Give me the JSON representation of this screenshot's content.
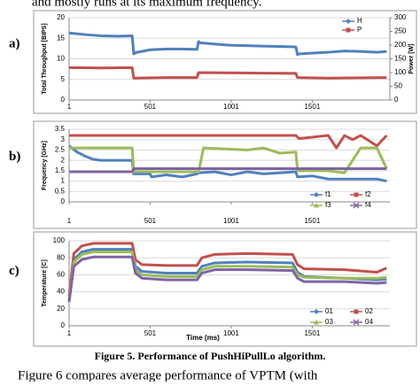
{
  "text_top": "and mostly runs at its maximum frequency.",
  "caption": "Figure 5. Performance of PushHiPullLo algorithm.",
  "text_bottom": "Figure 6 compares average performance of VPTM (with",
  "chart_data": [
    {
      "type": "line",
      "panel": "a)",
      "ylabel": "Total Throughput [BIPS]",
      "y2label": "Power [W]",
      "legend": "top-right",
      "xlim": [
        1,
        1980
      ],
      "xticks": [
        1,
        501,
        1001,
        1501
      ],
      "ylim": [
        0,
        20
      ],
      "yticks": [
        0,
        5,
        10,
        15,
        20
      ],
      "y2lim": [
        0,
        300
      ],
      "y2ticks": [
        0,
        50,
        100,
        150,
        200,
        250,
        300
      ],
      "series": [
        {
          "name": "H",
          "color": "#4f81bd",
          "marker": "diamond",
          "x": [
            1,
            100,
            200,
            300,
            390,
            400,
            410,
            500,
            600,
            700,
            790,
            800,
            810,
            900,
            1000,
            1100,
            1200,
            1300,
            1400,
            1410,
            1420,
            1500,
            1600,
            1700,
            1800,
            1900,
            1960
          ],
          "values": [
            16.3,
            15.9,
            15.6,
            15.5,
            15.6,
            11.2,
            11.5,
            12.2,
            12.4,
            12.4,
            12.3,
            14.2,
            13.9,
            13.6,
            13.3,
            13.2,
            13.1,
            13.0,
            12.9,
            11,
            11.2,
            11.4,
            11.6,
            11.9,
            11.8,
            11.6,
            11.8
          ]
        },
        {
          "name": "P",
          "color": "#c0504d",
          "marker": "square",
          "axis": "y2",
          "x": [
            1,
            200,
            390,
            400,
            600,
            790,
            800,
            1000,
            1200,
            1400,
            1410,
            1600,
            1800,
            1960
          ],
          "values": [
            118,
            117,
            118,
            80,
            82,
            82,
            100,
            99,
            98,
            97,
            82,
            80,
            81,
            82
          ]
        }
      ]
    },
    {
      "type": "line",
      "panel": "b)",
      "ylabel": "Frequency [GHz]",
      "legend": "bottom-right",
      "xlim": [
        1,
        1980
      ],
      "xticks": [
        1,
        501,
        1001,
        1501
      ],
      "ylim": [
        0,
        3.5
      ],
      "yticks": [
        0,
        0.5,
        1,
        1.5,
        2,
        2.5,
        3,
        3.5
      ],
      "series": [
        {
          "name": "f1",
          "color": "#4f81bd",
          "marker": "diamond",
          "x": [
            1,
            50,
            100,
            150,
            200,
            300,
            390,
            400,
            500,
            510,
            600,
            700,
            790,
            800,
            900,
            1000,
            1100,
            1200,
            1300,
            1400,
            1410,
            1500,
            1600,
            1700,
            1800,
            1900,
            1960
          ],
          "values": [
            2.7,
            2.4,
            2.2,
            2.05,
            2.0,
            2.0,
            2.0,
            1.35,
            1.35,
            1.2,
            1.3,
            1.2,
            1.35,
            1.4,
            1.45,
            1.3,
            1.45,
            1.35,
            1.4,
            1.45,
            1.2,
            1.25,
            1.1,
            1.1,
            1.1,
            1.1,
            1.0
          ]
        },
        {
          "name": "f2",
          "color": "#c0504d",
          "marker": "square",
          "x": [
            1,
            390,
            400,
            1000,
            1400,
            1420,
            1600,
            1650,
            1700,
            1750,
            1800,
            1900,
            1960
          ],
          "values": [
            3.2,
            3.2,
            3.2,
            3.2,
            3.2,
            3.05,
            3.2,
            2.6,
            3.2,
            3.0,
            3.2,
            2.7,
            3.2
          ]
        },
        {
          "name": "f3",
          "color": "#9bbb59",
          "marker": "triangle",
          "x": [
            1,
            390,
            400,
            800,
            830,
            1100,
            1200,
            1300,
            1400,
            1410,
            1600,
            1700,
            1800,
            1900,
            1960
          ],
          "values": [
            2.6,
            2.6,
            1.45,
            1.45,
            2.6,
            2.5,
            2.6,
            2.35,
            2.4,
            1.5,
            1.5,
            1.4,
            2.6,
            2.6,
            1.6
          ]
        },
        {
          "name": "f4",
          "color": "#8064a2",
          "marker": "x",
          "x": [
            1,
            390,
            400,
            1000,
            1400,
            1960
          ],
          "values": [
            1.45,
            1.45,
            1.6,
            1.6,
            1.6,
            1.6
          ]
        }
      ]
    },
    {
      "type": "line",
      "panel": "c)",
      "ylabel": "Temperature [C]",
      "xlabel": "Time (ms)",
      "legend": "bottom-right",
      "xlim": [
        1,
        1980
      ],
      "xticks": [
        1,
        501,
        1001,
        1501
      ],
      "ylim": [
        0,
        100
      ],
      "yticks": [
        0,
        20,
        40,
        60,
        80,
        100
      ],
      "x": [
        1,
        30,
        80,
        150,
        300,
        390,
        410,
        450,
        600,
        790,
        820,
        900,
        1100,
        1380,
        1410,
        1450,
        1700,
        1900,
        1960
      ],
      "series": [
        {
          "name": "01",
          "color": "#4f81bd",
          "marker": "diamond",
          "values": [
            30,
            78,
            87,
            90,
            90,
            90,
            70,
            64,
            62,
            62,
            70,
            74,
            75,
            74,
            63,
            58,
            56,
            54,
            55
          ]
        },
        {
          "name": "02",
          "color": "#c0504d",
          "marker": "square",
          "values": [
            35,
            85,
            94,
            97,
            97,
            97,
            78,
            72,
            71,
            71,
            80,
            84,
            85,
            84,
            72,
            67,
            66,
            63,
            68
          ]
        },
        {
          "name": "03",
          "color": "#9bbb59",
          "marker": "triangle",
          "values": [
            30,
            75,
            84,
            87,
            87,
            87,
            66,
            60,
            58,
            58,
            66,
            70,
            70,
            69,
            60,
            57,
            56,
            56,
            57
          ]
        },
        {
          "name": "04",
          "color": "#8064a2",
          "marker": "x",
          "values": [
            28,
            70,
            78,
            81,
            81,
            81,
            62,
            56,
            54,
            54,
            62,
            66,
            66,
            65,
            56,
            52,
            52,
            50,
            51
          ]
        }
      ]
    }
  ]
}
